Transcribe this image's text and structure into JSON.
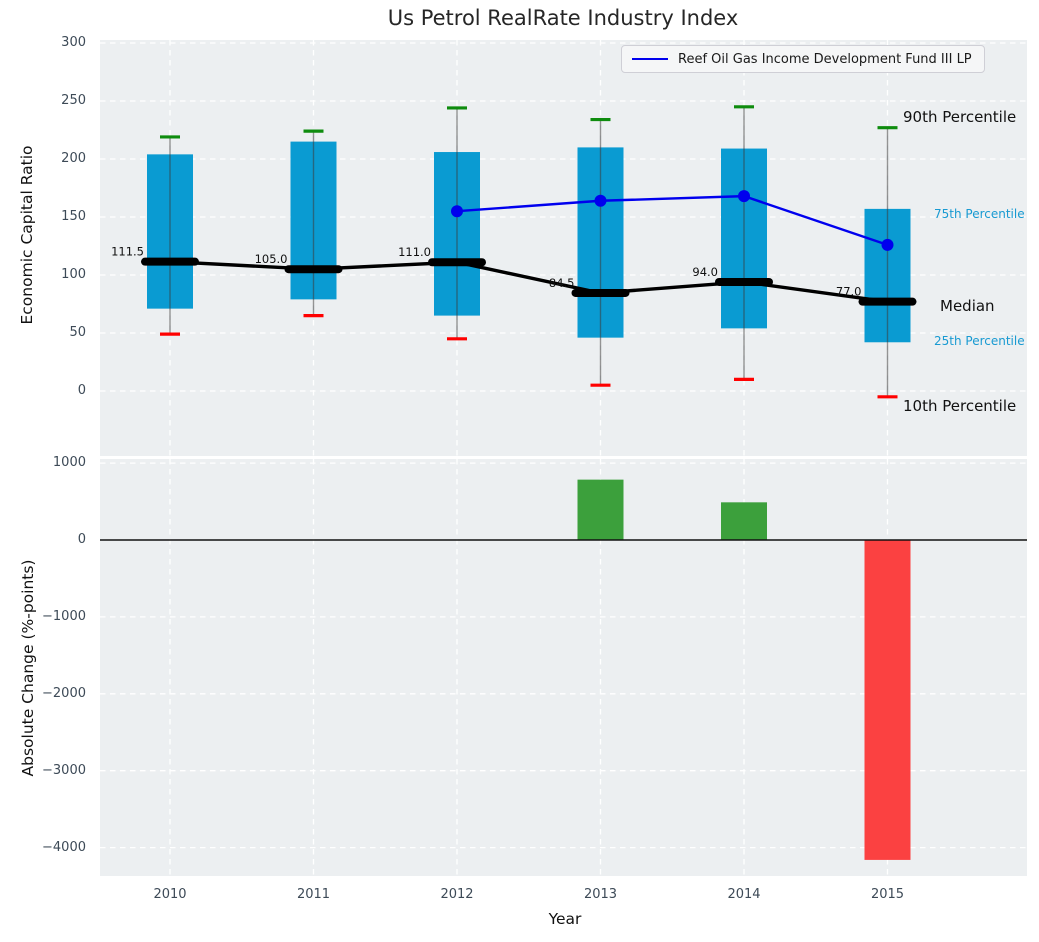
{
  "figure": {
    "title": "Us Petrol RealRate Industry Index"
  },
  "legend": {
    "label": "Reef Oil Gas Income Development Fund III LP"
  },
  "annotations": {
    "p90": "90th Percentile",
    "p75": "75th Percentile",
    "median": "Median",
    "p25": "25th Percentile",
    "p10": "10th Percentile"
  },
  "colors": {
    "box": "#0a9bd2",
    "whisker": "rgba(60,60,60,0.55)",
    "cap_top": "#0e8c0e",
    "cap_bottom": "#ff0000",
    "median": "#000000",
    "fund_line": "#0000ee",
    "bar_positive": "#3ca03c",
    "bar_negative": "#fb4141",
    "grid": "#ffffff",
    "zero_line": "#111111",
    "tick_label": "#3d4a57",
    "percentile_label": "#189ad2"
  },
  "chart_data": [
    {
      "type": "boxplot",
      "title": "Us Petrol RealRate Industry Index",
      "xlabel": "Year",
      "ylabel": "Economic Capital Ratio",
      "categories": [
        "2010",
        "2011",
        "2012",
        "2013",
        "2014",
        "2015"
      ],
      "ytick_values": [
        0,
        50,
        100,
        150,
        200,
        250,
        300
      ],
      "ytick_labels": [
        "0",
        "50",
        "100",
        "150",
        "200",
        "250",
        "300"
      ],
      "ylim": [
        -57,
        302
      ],
      "grid": true,
      "legend_position": "upper right",
      "series": [
        {
          "name": "10th Percentile",
          "values": [
            49,
            65,
            45,
            5,
            10,
            -5
          ]
        },
        {
          "name": "25th Percentile",
          "values": [
            71,
            79,
            65,
            46,
            54,
            42
          ]
        },
        {
          "name": "Median",
          "values": [
            111.5,
            105.0,
            111.0,
            84.5,
            94.0,
            77.0
          ]
        },
        {
          "name": "75th Percentile",
          "values": [
            204,
            215,
            206,
            210,
            209,
            157
          ]
        },
        {
          "name": "90th Percentile",
          "values": [
            219,
            224,
            244,
            234,
            245,
            227
          ]
        },
        {
          "name": "Reef Oil Gas Income Development Fund III LP",
          "values": [
            null,
            null,
            155,
            164,
            168,
            126
          ]
        }
      ],
      "median_labels": [
        "111.5",
        "105.0",
        "111.0",
        "84.5",
        "94.0",
        "77.0"
      ]
    },
    {
      "type": "bar",
      "xlabel": "Year",
      "ylabel": "Absolute Change (%-points)",
      "categories": [
        "2010",
        "2011",
        "2012",
        "2013",
        "2014",
        "2015"
      ],
      "values": [
        0,
        0,
        0,
        785,
        490,
        -4160
      ],
      "ytick_values": [
        1000,
        0,
        -1000,
        -2000,
        -3000,
        -4000
      ],
      "ytick_labels": [
        "1000",
        "0",
        "−1000",
        "−2000",
        "−3000",
        "−4000"
      ],
      "ylim": [
        -4420,
        1055
      ],
      "grid": true,
      "zero_line": true
    }
  ]
}
